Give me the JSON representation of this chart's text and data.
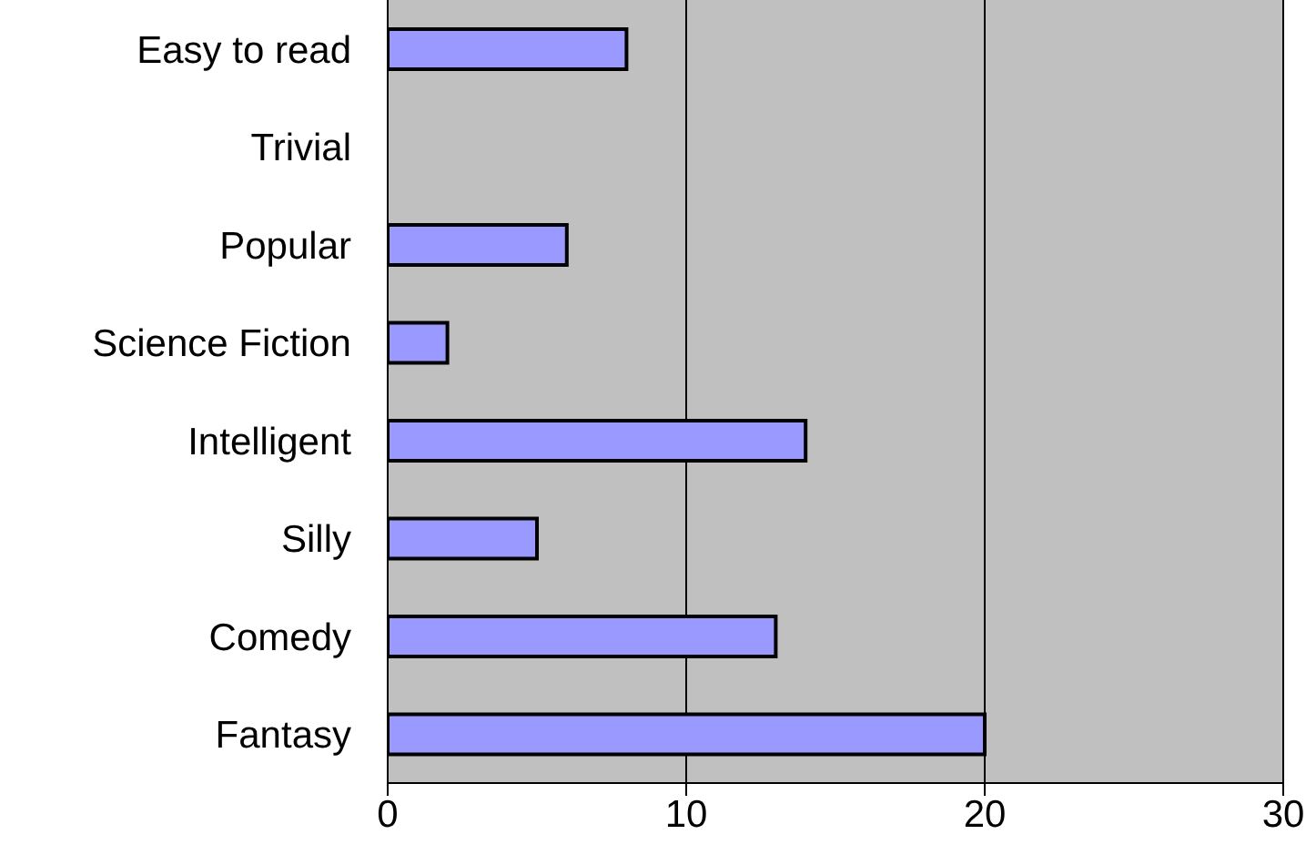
{
  "chart_data": {
    "type": "bar",
    "orientation": "horizontal",
    "categories": [
      "Easy to read",
      "Trivial",
      "Popular",
      "Science Fiction",
      "Intelligent",
      "Silly",
      "Comedy",
      "Fantasy"
    ],
    "values": [
      8,
      0,
      6,
      2,
      14,
      5,
      13,
      20
    ],
    "color": "#9999ff",
    "xlim": [
      0,
      30
    ],
    "xticks": [
      0,
      10,
      20,
      30
    ],
    "grid": "x"
  }
}
